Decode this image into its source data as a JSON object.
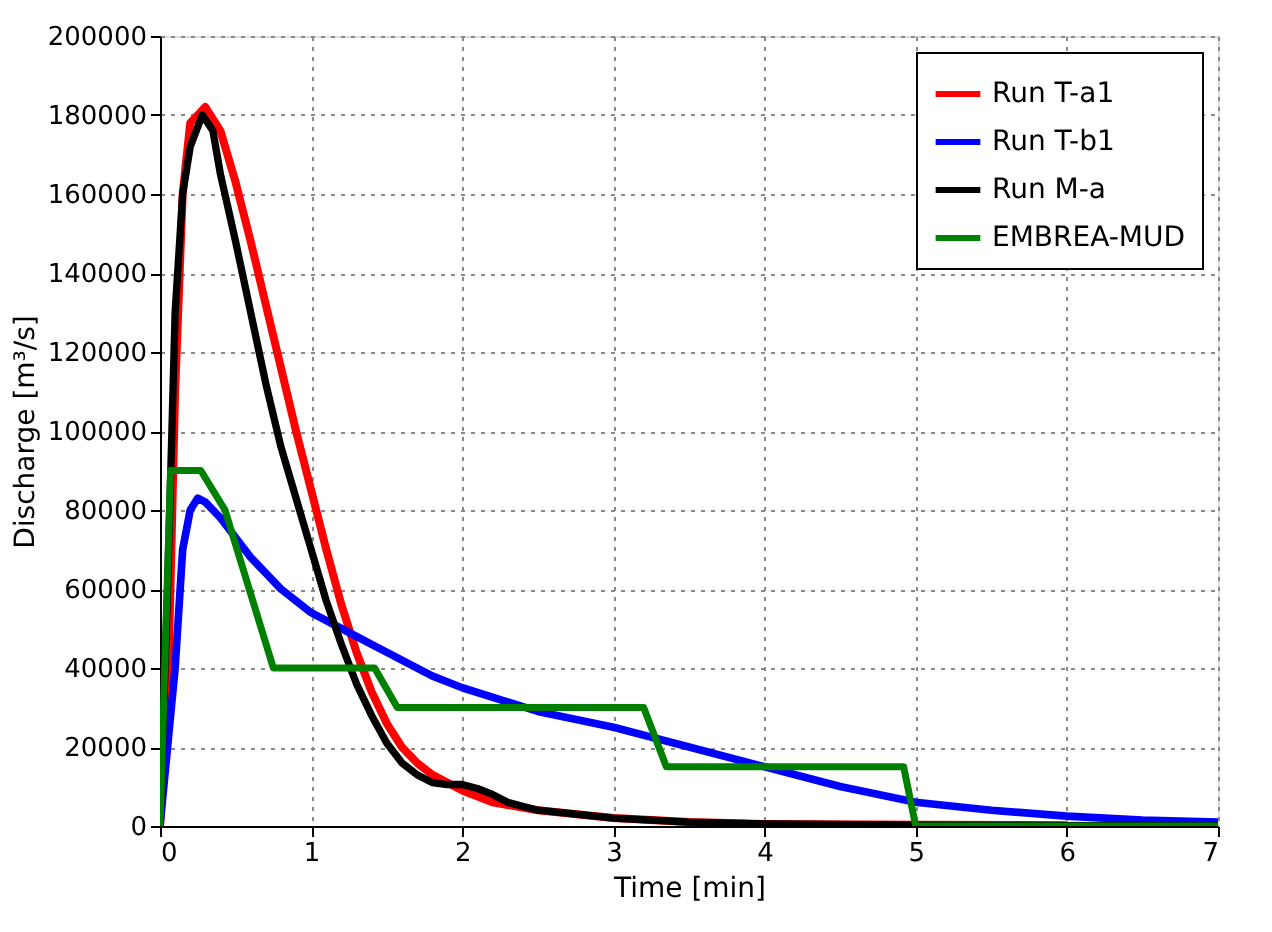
{
  "chart_data": {
    "type": "line",
    "xlabel": "Time [min]",
    "ylabel": "Discharge [m³/s]",
    "xlim": [
      0,
      7
    ],
    "xticks": [
      0,
      1,
      2,
      3,
      4,
      5,
      6,
      7
    ],
    "ylim": [
      0,
      200000
    ],
    "yticks": [
      0,
      20000,
      40000,
      60000,
      80000,
      100000,
      120000,
      140000,
      160000,
      180000,
      200000
    ],
    "grid": true,
    "legend": "top right",
    "line_style": "solid",
    "marker": "none",
    "series": [
      {
        "name": "Run T-a1",
        "color": "#ff0000",
        "x": [
          0,
          0.05,
          0.1,
          0.15,
          0.2,
          0.3,
          0.4,
          0.5,
          0.6,
          0.7,
          0.8,
          0.9,
          1.0,
          1.1,
          1.2,
          1.3,
          1.4,
          1.5,
          1.6,
          1.7,
          1.8,
          2.0,
          2.2,
          2.5,
          3,
          3.5,
          4,
          5,
          6
        ],
        "values": [
          0,
          30000,
          110000,
          160000,
          178000,
          182000,
          176000,
          163000,
          148000,
          132000,
          116000,
          100000,
          85000,
          70000,
          56000,
          44000,
          34000,
          26000,
          20000,
          16000,
          13000,
          9000,
          6000,
          4000,
          2000,
          1000,
          500,
          300,
          200
        ]
      },
      {
        "name": "Run T-b1",
        "color": "#0000ff",
        "x": [
          0,
          0.1,
          0.15,
          0.2,
          0.25,
          0.3,
          0.4,
          0.5,
          0.6,
          0.7,
          0.8,
          1.0,
          1.2,
          1.4,
          1.6,
          1.8,
          2.0,
          2.5,
          3.0,
          3.5,
          4.0,
          4.5,
          5.0,
          5.5,
          6,
          6.5,
          7
        ],
        "values": [
          0,
          40000,
          70000,
          80000,
          83000,
          82000,
          78000,
          73000,
          68000,
          64000,
          60000,
          54000,
          50000,
          46000,
          42000,
          38000,
          35000,
          29000,
          25000,
          20000,
          15000,
          10000,
          6000,
          4000,
          2500,
          1500,
          1000
        ]
      },
      {
        "name": "Run M-a",
        "color": "#000000",
        "x": [
          0,
          0.05,
          0.1,
          0.15,
          0.2,
          0.28,
          0.35,
          0.4,
          0.5,
          0.6,
          0.7,
          0.8,
          0.9,
          1.0,
          1.1,
          1.2,
          1.3,
          1.4,
          1.5,
          1.6,
          1.7,
          1.8,
          1.9,
          2.0,
          2.1,
          2.2,
          2.3,
          2.5,
          3,
          3.5,
          4,
          5,
          7
        ],
        "values": [
          0,
          60000,
          130000,
          160000,
          172000,
          180000,
          176000,
          165000,
          148000,
          130000,
          112000,
          96000,
          83000,
          70000,
          57000,
          46000,
          36000,
          28000,
          21000,
          16000,
          13000,
          11000,
          10500,
          10500,
          9500,
          8000,
          6000,
          4000,
          2000,
          1000,
          500,
          200,
          0
        ]
      },
      {
        "name": "EMBREA-MUD",
        "color": "#008000",
        "x": [
          0,
          0.07,
          0.27,
          0.43,
          0.75,
          1.42,
          1.57,
          3.2,
          3.35,
          4.92,
          5,
          7
        ],
        "values": [
          0,
          90000,
          90000,
          80000,
          40000,
          40000,
          30000,
          30000,
          15000,
          15000,
          0,
          0
        ]
      }
    ]
  }
}
